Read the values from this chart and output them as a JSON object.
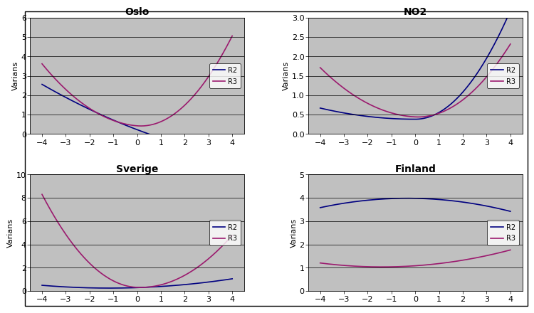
{
  "panels": [
    {
      "title": "Oslo",
      "ylim": [
        0,
        6
      ],
      "yticks": [
        0,
        1,
        2,
        3,
        4,
        5,
        6
      ],
      "color_R2": "#000080",
      "color_R3": "#9B1A6E"
    },
    {
      "title": "NO2",
      "ylim": [
        0,
        3
      ],
      "yticks": [
        0,
        0.5,
        1,
        1.5,
        2,
        2.5,
        3
      ],
      "color_R2": "#000080",
      "color_R3": "#9B1A6E"
    },
    {
      "title": "Sverige",
      "ylim": [
        0,
        10
      ],
      "yticks": [
        0,
        2,
        4,
        6,
        8,
        10
      ],
      "color_R2": "#000080",
      "color_R3": "#9B1A6E"
    },
    {
      "title": "Finland",
      "ylim": [
        0,
        5
      ],
      "yticks": [
        0,
        1,
        2,
        3,
        4,
        5
      ],
      "color_R2": "#000080",
      "color_R3": "#9B1A6E"
    }
  ],
  "ylabel": "Varians",
  "xlim": [
    -4.5,
    4.5
  ],
  "xticks": [
    -4,
    -3,
    -2,
    -1,
    0,
    1,
    2,
    3,
    4
  ],
  "bg_color": "#C0C0C0",
  "fig_bg": "#FFFFFF",
  "line_width": 1.2,
  "title_fontsize": 10,
  "label_fontsize": 8,
  "tick_fontsize": 8
}
